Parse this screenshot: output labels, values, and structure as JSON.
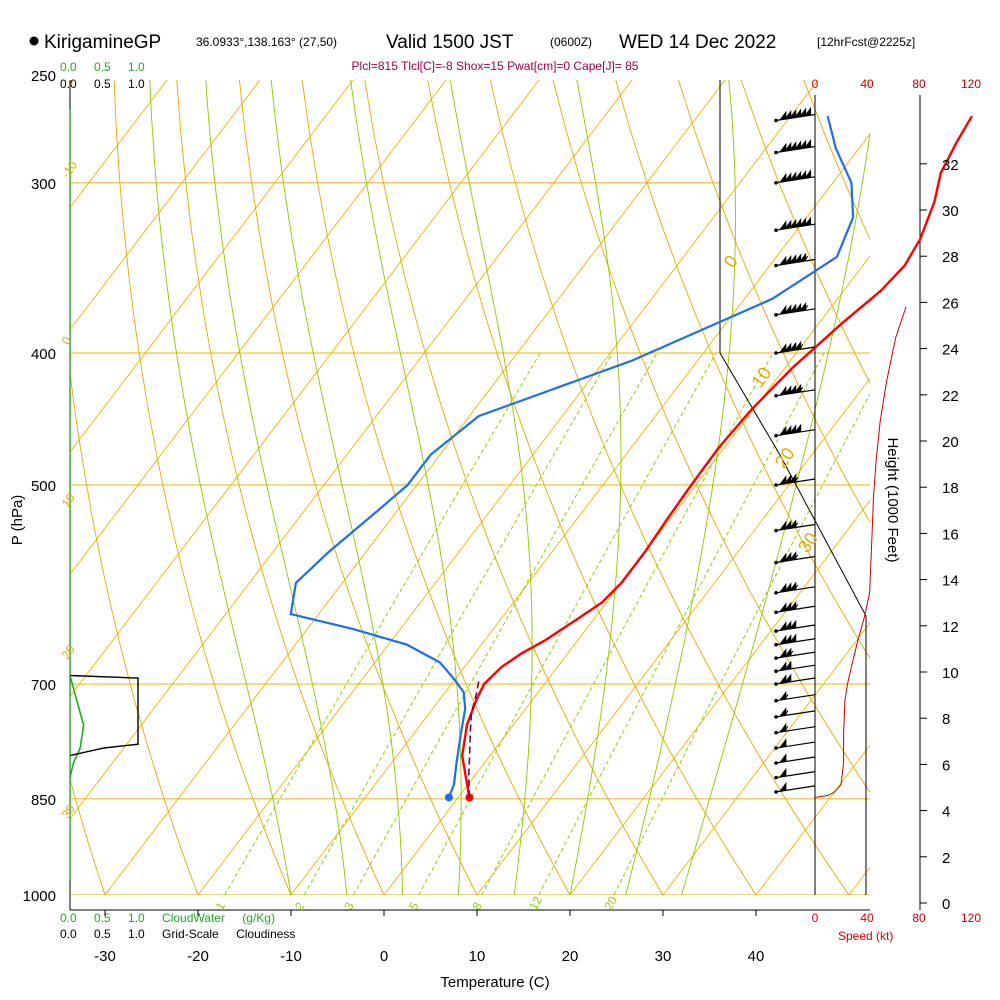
{
  "header": {
    "station": "KirigamineGP",
    "coords": "36.0933°,138.163° (27,50)",
    "valid": "Valid 1500 JST",
    "utc": "(0600Z)",
    "date": "WED 14 Dec 2022",
    "forecast": "[12hrFcst@2225z]",
    "indices": "Plcl=815 Tlcl[C]=-8 Shox=15 Pwat[cm]=0 Cape[J]= 85"
  },
  "colors": {
    "temperature": "#ff0000",
    "dewpoint": "#1e6ee6",
    "parcel": "#7a0040",
    "isotherm": "#f0b400",
    "dry_adiabat": "#e6a800",
    "moist_adiabat": "#8cc800",
    "mixing_ratio": "#90d000",
    "cloud_water": "#22aa22",
    "wind_speed": "#cc0000",
    "indices_text": "#a0004e"
  },
  "cloud_scale": {
    "top_water_label": "0.0 0.5 1.0",
    "top_cloudiness_label": "0.0 0.5 1.0",
    "bottom_water_label": "0.0 0.5 1.0 CloudWater (g/Kg)",
    "bottom_cloudiness_label": "0.0 0.5 1.0 Grid-Scale Cloudiness"
  },
  "chart_data": {
    "type": "line",
    "title": "KirigamineGP Valid 1500 JST (0600Z) WED 14 Dec 2022",
    "xlabel": "Temperature (C)",
    "ylabel": "P (hPa)",
    "height_label": "Height (1000 Feet)",
    "speed_label": "Speed (kt)",
    "xlim": [
      -35,
      45
    ],
    "xticks": [
      -30,
      -20,
      -10,
      0,
      10,
      20,
      30,
      40
    ],
    "pressure_ticks": [
      250,
      300,
      400,
      500,
      700,
      850,
      1000
    ],
    "height_ticks": [
      0,
      2,
      4,
      6,
      8,
      10,
      12,
      14,
      16,
      18,
      20,
      22,
      24,
      26,
      28,
      30,
      32
    ],
    "speed_ticks": [
      0,
      40,
      80,
      120
    ],
    "dry_adiabat_labels": [
      {
        "label": "-10",
        "T": -34,
        "p": 298
      },
      {
        "label": "0",
        "T": -34,
        "p": 395
      },
      {
        "label": "10",
        "T": -34,
        "p": 520
      },
      {
        "label": "20",
        "T": -34,
        "p": 672
      },
      {
        "label": "30",
        "T": -34,
        "p": 880
      },
      {
        "label": "0",
        "T": 37.5,
        "p": 347
      },
      {
        "label": "10",
        "T": 40.5,
        "p": 425
      },
      {
        "label": "20",
        "T": 43,
        "p": 487
      },
      {
        "label": "30",
        "T": 45.5,
        "p": 562
      }
    ],
    "mixing_ratio_labels": [
      "1",
      "2",
      "3",
      "5",
      "8",
      "12",
      "20"
    ],
    "series": [
      {
        "name": "Temperature",
        "points": [
          [
            1.2,
            848
          ],
          [
            -0.8,
            820
          ],
          [
            -3,
            790
          ],
          [
            -5,
            750
          ],
          [
            -6,
            720
          ],
          [
            -6.5,
            700
          ],
          [
            -6,
            680
          ],
          [
            -5,
            665
          ],
          [
            -3.5,
            650
          ],
          [
            -2,
            630
          ],
          [
            -0.5,
            610
          ],
          [
            0,
            590
          ],
          [
            0,
            560
          ],
          [
            -0.3,
            530
          ],
          [
            -0.5,
            500
          ],
          [
            -0.6,
            470
          ],
          [
            -0.2,
            440
          ],
          [
            0.8,
            410
          ],
          [
            2.5,
            380
          ],
          [
            4,
            360
          ],
          [
            4.5,
            345
          ],
          [
            4,
            330
          ],
          [
            2.5,
            310
          ],
          [
            0.8,
            295
          ],
          [
            0,
            280
          ],
          [
            -0.5,
            268
          ]
        ]
      },
      {
        "name": "Dewpoint",
        "points": [
          [
            -1,
            848
          ],
          [
            -1.5,
            830
          ],
          [
            -3,
            800
          ],
          [
            -5,
            760
          ],
          [
            -6.5,
            730
          ],
          [
            -8,
            710
          ],
          [
            -10,
            695
          ],
          [
            -13,
            675
          ],
          [
            -18,
            655
          ],
          [
            -25,
            638
          ],
          [
            -33,
            622
          ],
          [
            -35,
            590
          ],
          [
            -34,
            560
          ],
          [
            -32,
            520
          ],
          [
            -31,
            500
          ],
          [
            -31,
            475
          ],
          [
            -29,
            445
          ],
          [
            -17,
            405
          ],
          [
            -7,
            365
          ],
          [
            -3.5,
            340
          ],
          [
            -5,
            318
          ],
          [
            -8,
            300
          ],
          [
            -12.5,
            283
          ],
          [
            -16,
            268
          ]
        ]
      },
      {
        "name": "Parcel",
        "points": [
          [
            1.2,
            848
          ],
          [
            -0.5,
            820
          ],
          [
            -2.2,
            790
          ],
          [
            -4,
            760
          ],
          [
            -5.5,
            735
          ],
          [
            -6.5,
            712
          ],
          [
            -7.5,
            693
          ]
        ]
      },
      {
        "name": "Wind speed",
        "points": [
          [
            0,
            848
          ],
          [
            10,
            845
          ],
          [
            15,
            840
          ],
          [
            20,
            830
          ],
          [
            22,
            800
          ],
          [
            22,
            760
          ],
          [
            23,
            720
          ],
          [
            25,
            700
          ],
          [
            28,
            680
          ],
          [
            33,
            650
          ],
          [
            38,
            625
          ],
          [
            42,
            600
          ],
          [
            43,
            570
          ],
          [
            44,
            540
          ],
          [
            45,
            510
          ],
          [
            47,
            480
          ],
          [
            50,
            450
          ],
          [
            55,
            420
          ],
          [
            62,
            390
          ],
          [
            70,
            370
          ]
        ]
      },
      {
        "name": "CloudWater",
        "points": [
          [
            0,
            690
          ],
          [
            0.1,
            720
          ],
          [
            0.2,
            750
          ],
          [
            0.15,
            780
          ],
          [
            0.05,
            800
          ],
          [
            0,
            820
          ]
        ]
      },
      {
        "name": "Cloudiness",
        "points": [
          [
            0,
            690
          ],
          [
            1.0,
            693
          ],
          [
            1.0,
            775
          ],
          [
            0.5,
            780
          ],
          [
            0,
            790
          ]
        ]
      }
    ],
    "wind_barbs": [
      {
        "p": 270,
        "speed": 60
      },
      {
        "p": 285,
        "speed": 60
      },
      {
        "p": 300,
        "speed": 60
      },
      {
        "p": 325,
        "speed": 60
      },
      {
        "p": 345,
        "speed": 55
      },
      {
        "p": 375,
        "speed": 55
      },
      {
        "p": 400,
        "speed": 45
      },
      {
        "p": 430,
        "speed": 45
      },
      {
        "p": 460,
        "speed": 40
      },
      {
        "p": 500,
        "speed": 35
      },
      {
        "p": 540,
        "speed": 35
      },
      {
        "p": 570,
        "speed": 35
      },
      {
        "p": 600,
        "speed": 35
      },
      {
        "p": 620,
        "speed": 35
      },
      {
        "p": 640,
        "speed": 30
      },
      {
        "p": 655,
        "speed": 30
      },
      {
        "p": 670,
        "speed": 25
      },
      {
        "p": 685,
        "speed": 20
      },
      {
        "p": 700,
        "speed": 20
      },
      {
        "p": 720,
        "speed": 15
      },
      {
        "p": 740,
        "speed": 15
      },
      {
        "p": 760,
        "speed": 15
      },
      {
        "p": 780,
        "speed": 10
      },
      {
        "p": 800,
        "speed": 10
      },
      {
        "p": 820,
        "speed": 10
      },
      {
        "p": 840,
        "speed": 10
      }
    ]
  }
}
